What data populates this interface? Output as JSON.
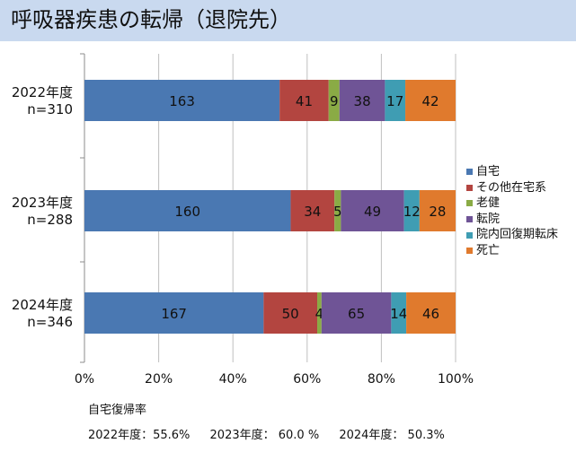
{
  "header": {
    "title": "呼吸器疾患の転帰（退院先）"
  },
  "legend": [
    {
      "name": "自宅",
      "color": "#4a78b2"
    },
    {
      "name": "その他在宅系",
      "color": "#b34540"
    },
    {
      "name": "老健",
      "color": "#8aab45"
    },
    {
      "name": "転院",
      "color": "#6f5496"
    },
    {
      "name": "院内回復期転床",
      "color": "#3f9db3"
    },
    {
      "name": "死亡",
      "color": "#e07a2d"
    }
  ],
  "chart_data": {
    "type": "bar",
    "orientation": "horizontal",
    "stacked": "100%",
    "categories": [
      "2022年度\nn=310",
      "2023年度\nn=288",
      "2024年度\nn=346"
    ],
    "series": [
      {
        "name": "自宅",
        "values": [
          163,
          160,
          167
        ]
      },
      {
        "name": "その他在宅系",
        "values": [
          41,
          34,
          50
        ]
      },
      {
        "name": "老健",
        "values": [
          9,
          5,
          4
        ]
      },
      {
        "name": "転院",
        "values": [
          38,
          49,
          65
        ]
      },
      {
        "name": "院内回復期転床",
        "values": [
          17,
          12,
          14
        ]
      },
      {
        "name": "死亡",
        "values": [
          42,
          28,
          46
        ]
      }
    ],
    "x_ticks": [
      "0%",
      "20%",
      "40%",
      "60%",
      "80%",
      "100%"
    ],
    "xlim": [
      0,
      100
    ],
    "grid": true,
    "legend_position": "right"
  },
  "footer": {
    "label": "自宅復帰率",
    "rates": [
      "2022年度：55.6%",
      "2023年度： 60.0 %",
      "2024年度： 50.3%"
    ]
  }
}
